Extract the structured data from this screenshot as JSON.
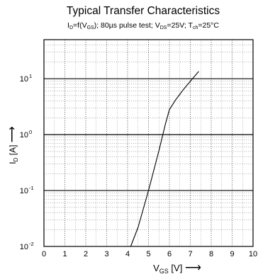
{
  "chart_data": {
    "type": "line",
    "title": "Typical Transfer Characteristics",
    "subtitle": {
      "parts": [
        {
          "t": "I"
        },
        {
          "sub": "D"
        },
        {
          "t": "=f(V"
        },
        {
          "sub": "GS"
        },
        {
          "t": "); 80µs pulse test; V"
        },
        {
          "sub": "DS"
        },
        {
          "t": "=25V; T"
        },
        {
          "sub": "ch"
        },
        {
          "t": "=25°C"
        }
      ]
    },
    "xlabel": {
      "main": "V",
      "sub": "GS",
      "rest": " [V]",
      "arrow": "⟶"
    },
    "ylabel": {
      "main": "I",
      "sub": "D",
      "rest": " [A]",
      "arrow": "⟶"
    },
    "xlim": [
      0,
      10
    ],
    "ylim": [
      0.01,
      50
    ],
    "yscale": "log",
    "x_ticks": [
      "0",
      "1",
      "2",
      "3",
      "4",
      "5",
      "6",
      "7",
      "8",
      "9",
      "10"
    ],
    "y_ticks": [
      {
        "value": 0.01,
        "base": "10",
        "exp": "-2"
      },
      {
        "value": 0.1,
        "base": "10",
        "exp": "-1"
      },
      {
        "value": 1,
        "base": "10",
        "exp": "0"
      },
      {
        "value": 10,
        "base": "10",
        "exp": "1"
      }
    ],
    "grid": true,
    "series": [
      {
        "x": [
          4.15,
          4.5,
          5.0,
          5.5,
          5.8,
          6.0,
          6.3,
          6.7,
          7.0,
          7.4
        ],
        "y": [
          0.01,
          0.022,
          0.1,
          0.52,
          1.5,
          2.8,
          4.2,
          6.6,
          9.0,
          13.5
        ]
      }
    ]
  }
}
